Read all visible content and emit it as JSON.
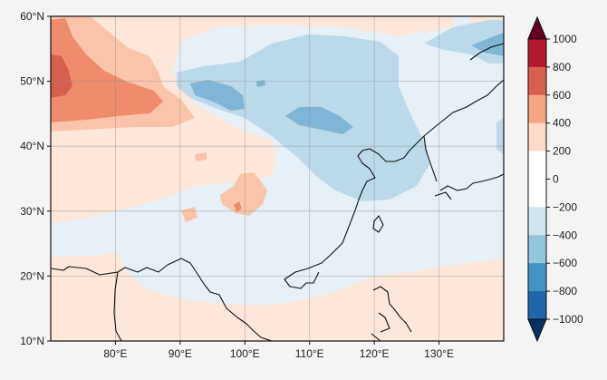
{
  "map": {
    "lat_ticks": [
      "10°N",
      "20°N",
      "30°N",
      "40°N",
      "50°N",
      "60°N"
    ],
    "lon_ticks": [
      "80°E",
      "90°E",
      "100°E",
      "110°E",
      "120°E",
      "130°E"
    ],
    "lon_range": [
      70,
      140
    ],
    "lat_range": [
      10,
      60
    ],
    "gridlines": true
  },
  "colorbar": {
    "levels": [
      -1000,
      -800,
      -600,
      -400,
      -200,
      0,
      200,
      400,
      600,
      800,
      1000
    ],
    "labels": [
      "1000",
      "800",
      "600",
      "400",
      "200",
      "0",
      "−200",
      "−400",
      "−600",
      "−800",
      "−1000"
    ],
    "colors_top_to_bottom": [
      "#b2182b",
      "#d6604d",
      "#f4a582",
      "#fddbc7",
      "#ffffff",
      "#ffffff",
      "#d1e5f0",
      "#92c5de",
      "#4393c3",
      "#2166ac"
    ],
    "extend_top_color": "#67001f",
    "extend_bottom_color": "#053061",
    "extend": "both"
  },
  "colors": {
    "pale_red": "#fde6da",
    "light_red": "#fbc4a8",
    "mid_red": "#ee8c6c",
    "dark_red": "#d6604d",
    "pale_blue": "#e6f0f6",
    "light_blue": "#bcd9e9",
    "mid_blue": "#7fb6d7",
    "coast": "#111111"
  }
}
